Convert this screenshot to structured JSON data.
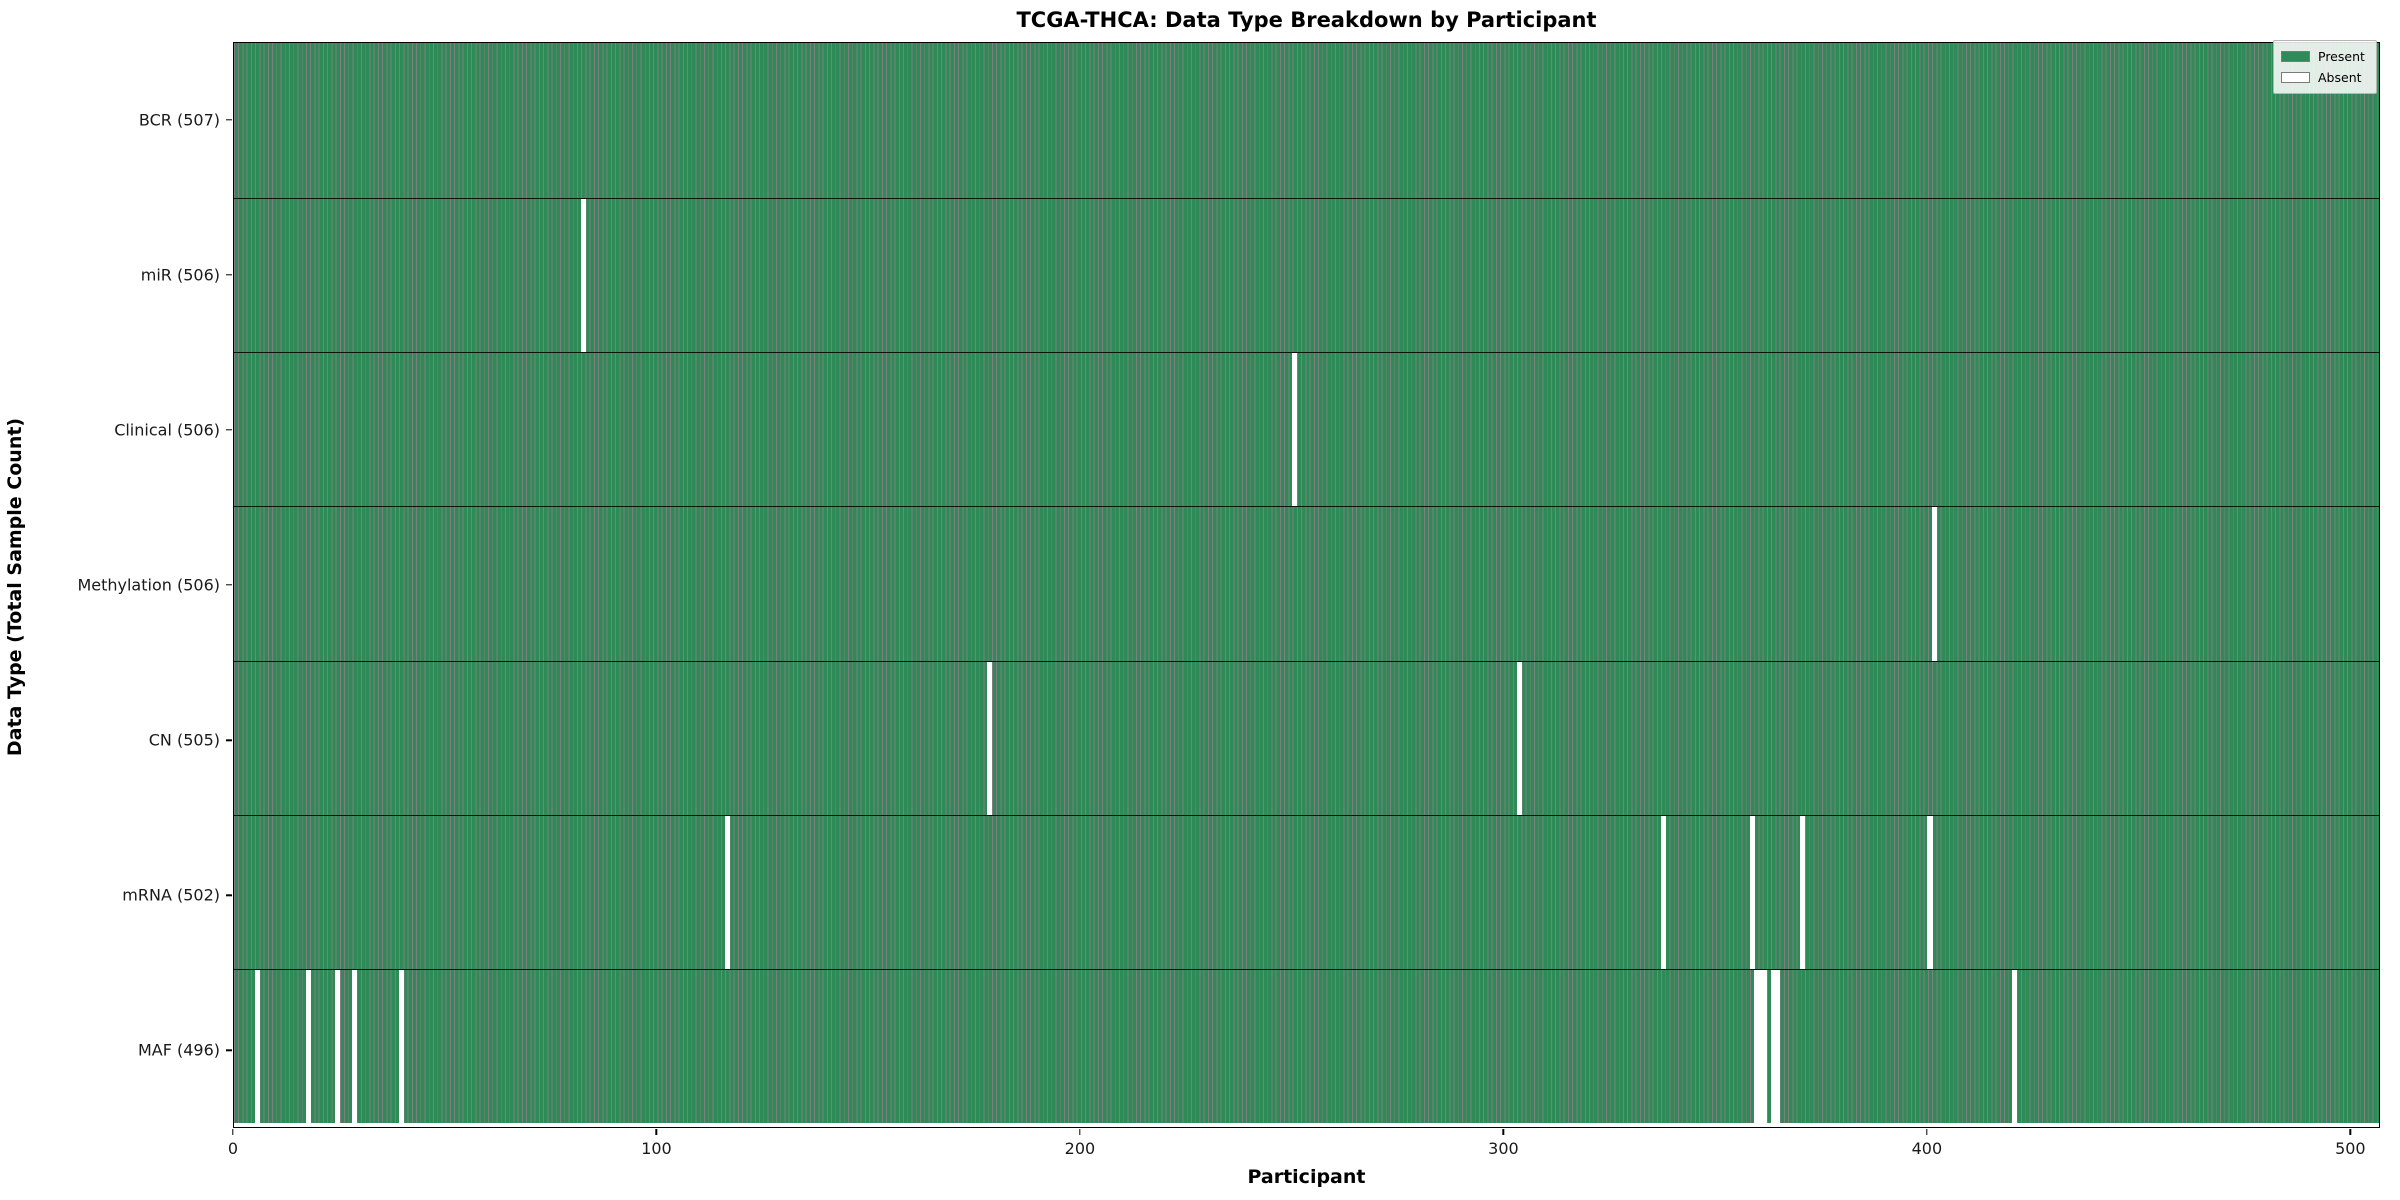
{
  "chart_data": {
    "type": "heatmap",
    "title": "TCGA-THCA: Data Type Breakdown by Participant",
    "xlabel": "Participant",
    "ylabel": "Data Type (Total Sample Count)",
    "xlim": [
      0,
      507
    ],
    "n_participants": 507,
    "x_ticks": [
      0,
      100,
      200,
      300,
      400,
      500
    ],
    "grid": false,
    "legend_position": "upper right",
    "legend": [
      {
        "label": "Present",
        "color": "#2e8b57"
      },
      {
        "label": "Absent",
        "color": "#ffffff"
      }
    ],
    "colors": {
      "present": "#2e8b57",
      "absent": "#ffffff",
      "bar_edge": "rgba(0,0,0,0.5)"
    },
    "rows": [
      {
        "label": "BCR (507)",
        "data_type": "BCR",
        "present_count": 507,
        "missing_participants": []
      },
      {
        "label": "miR (506)",
        "data_type": "miR",
        "present_count": 506,
        "missing_participants": [
          82
        ]
      },
      {
        "label": "Clinical (506)",
        "data_type": "Clinical",
        "present_count": 506,
        "missing_participants": [
          250
        ]
      },
      {
        "label": "Methylation (506)",
        "data_type": "Methylation",
        "present_count": 506,
        "missing_participants": [
          401
        ]
      },
      {
        "label": "CN (505)",
        "data_type": "CN",
        "present_count": 505,
        "missing_participants": [
          178,
          303
        ]
      },
      {
        "label": "mRNA (502)",
        "data_type": "mRNA",
        "present_count": 502,
        "missing_participants": [
          116,
          337,
          358,
          370,
          400
        ]
      },
      {
        "label": "MAF (496)",
        "data_type": "MAF",
        "present_count": 496,
        "missing_participants": [
          5,
          17,
          24,
          28,
          39,
          359,
          360,
          361,
          363,
          364,
          420
        ]
      }
    ]
  }
}
